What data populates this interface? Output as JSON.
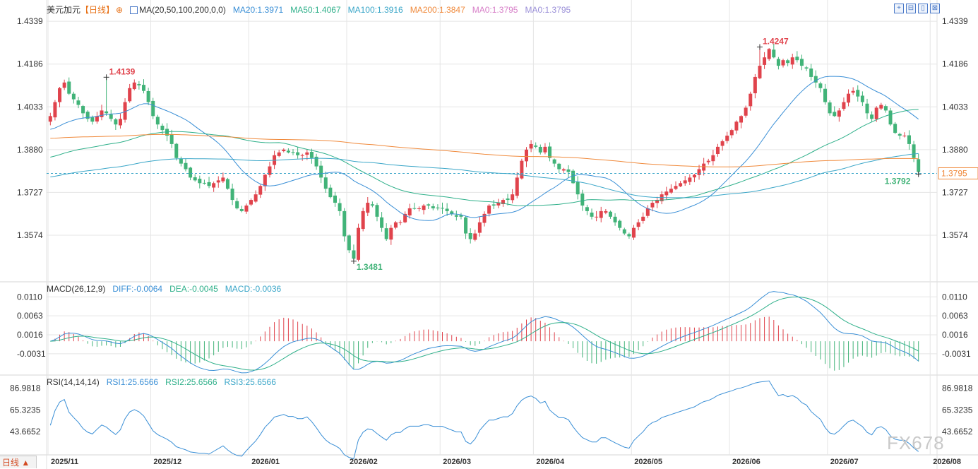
{
  "header": {
    "symbol": "美元加元",
    "period": "【日线】",
    "ma_title": "MA(20,50,100,200,0,0)",
    "ma_labels": [
      {
        "text": "MA20:1.3971",
        "color": "#3a8fd6"
      },
      {
        "text": "MA50:1.4067",
        "color": "#2fb08a"
      },
      {
        "text": "MA100:1.3916",
        "color": "#3aa6c8"
      },
      {
        "text": "MA200:1.3847",
        "color": "#f08a3c"
      },
      {
        "text": "MA0:1.3795",
        "color": "#d77fc8"
      },
      {
        "text": "MA0:1.3795",
        "color": "#9a8fd8"
      }
    ]
  },
  "toolbar": {
    "buttons": [
      "+",
      "⊟",
      "▯",
      "⊠"
    ]
  },
  "macd_header": {
    "title": "MACD(26,12,9)",
    "labels": [
      {
        "text": "DIFF:-0.0064",
        "color": "#3a8fd6"
      },
      {
        "text": "DEA:-0.0045",
        "color": "#2fb08a"
      },
      {
        "text": "MACD:-0.0036",
        "color": "#3aa6c8"
      }
    ]
  },
  "rsi_header": {
    "title": "RSI(14,14,14)",
    "labels": [
      {
        "text": "RSI1:25.6566",
        "color": "#3a8fd6"
      },
      {
        "text": "RSI2:25.6566",
        "color": "#2fb08a"
      },
      {
        "text": "RSI3:25.6566",
        "color": "#3aa6c8"
      }
    ]
  },
  "period_tag": "日线 ▲",
  "watermark": "FX678",
  "colors": {
    "up": "#e0434c",
    "down": "#41b378",
    "grid": "#e5e5e5",
    "axis_text": "#333333",
    "current": "#f08a3c"
  },
  "chart_data": [
    {
      "type": "candlestick",
      "title": "美元加元",
      "price_ticks": [
        "1.4339",
        "1.4186",
        "1.4033",
        "1.3880",
        "1.3727",
        "1.3574"
      ],
      "ylim": [
        1.3445,
        1.4395
      ],
      "x_tick_labels": [
        "2025/11",
        "2025/12",
        "2026/01",
        "2026/02",
        "2026/03",
        "2026/04",
        "2026/05",
        "2026/06",
        "2026/07",
        "2026/08"
      ],
      "annotations": {
        "high": "1.4247",
        "low": "1.3481",
        "left_high": "1.4139",
        "last_low": "1.3792"
      },
      "current_price": "1.3795",
      "path": [
        1.4,
        1.405,
        1.41,
        1.412,
        1.408,
        1.406,
        1.404,
        1.401,
        1.399,
        1.398,
        1.4,
        1.402,
        1.401,
        1.399,
        1.397,
        1.399,
        1.405,
        1.41,
        1.412,
        1.411,
        1.409,
        1.405,
        1.4,
        1.397,
        1.395,
        1.393,
        1.39,
        1.385,
        1.383,
        1.381,
        1.378,
        1.377,
        1.376,
        1.376,
        1.375,
        1.376,
        1.377,
        1.378,
        1.374,
        1.37,
        1.367,
        1.366,
        1.368,
        1.37,
        1.372,
        1.375,
        1.379,
        1.382,
        1.386,
        1.387,
        1.388,
        1.387,
        1.387,
        1.386,
        1.386,
        1.387,
        1.385,
        1.382,
        1.378,
        1.374,
        1.371,
        1.369,
        1.366,
        1.357,
        1.352,
        1.349,
        1.36,
        1.366,
        1.369,
        1.368,
        1.364,
        1.36,
        1.356,
        1.36,
        1.362,
        1.362,
        1.365,
        1.367,
        1.367,
        1.367,
        1.368,
        1.368,
        1.367,
        1.367,
        1.367,
        1.366,
        1.365,
        1.364,
        1.364,
        1.358,
        1.356,
        1.358,
        1.362,
        1.365,
        1.368,
        1.368,
        1.369,
        1.37,
        1.37,
        1.372,
        1.378,
        1.384,
        1.388,
        1.39,
        1.389,
        1.387,
        1.389,
        1.385,
        1.383,
        1.381,
        1.381,
        1.38,
        1.376,
        1.372,
        1.368,
        1.366,
        1.364,
        1.364,
        1.366,
        1.366,
        1.364,
        1.362,
        1.36,
        1.358,
        1.357,
        1.36,
        1.362,
        1.364,
        1.367,
        1.369,
        1.37,
        1.372,
        1.373,
        1.374,
        1.375,
        1.376,
        1.377,
        1.378,
        1.379,
        1.381,
        1.383,
        1.384,
        1.386,
        1.389,
        1.391,
        1.393,
        1.395,
        1.398,
        1.4,
        1.403,
        1.408,
        1.414,
        1.418,
        1.421,
        1.424,
        1.421,
        1.418,
        1.42,
        1.419,
        1.421,
        1.42,
        1.418,
        1.417,
        1.414,
        1.412,
        1.41,
        1.405,
        1.401,
        1.4,
        1.402,
        1.405,
        1.408,
        1.409,
        1.407,
        1.405,
        1.401,
        1.399,
        1.403,
        1.404,
        1.402,
        1.397,
        1.394,
        1.393,
        1.393,
        1.39,
        1.385,
        1.38
      ],
      "ma_series": [
        {
          "name": "MA20",
          "color": "#3a8fd6"
        },
        {
          "name": "MA50",
          "color": "#2fb08a"
        },
        {
          "name": "MA100",
          "color": "#3aa6c8"
        },
        {
          "name": "MA200",
          "color": "#f08a3c"
        }
      ]
    },
    {
      "type": "bar",
      "title": "MACD(26,12,9)",
      "ticks": [
        "0.0110",
        "0.0063",
        "0.0016",
        "-0.0031"
      ],
      "ylim": [
        -0.0075,
        0.0135
      ],
      "series": [
        {
          "name": "DIFF",
          "color": "#3a8fd6"
        },
        {
          "name": "DEA",
          "color": "#2fb08a"
        },
        {
          "name": "MACD",
          "color": "#3aa6c8"
        }
      ]
    },
    {
      "type": "line",
      "title": "RSI(14,14,14)",
      "ticks": [
        "86.9818",
        "65.3235",
        "43.6652"
      ],
      "ylim": [
        20,
        95
      ],
      "series": [
        {
          "name": "RSI1",
          "color": "#3a8fd6"
        }
      ]
    }
  ]
}
